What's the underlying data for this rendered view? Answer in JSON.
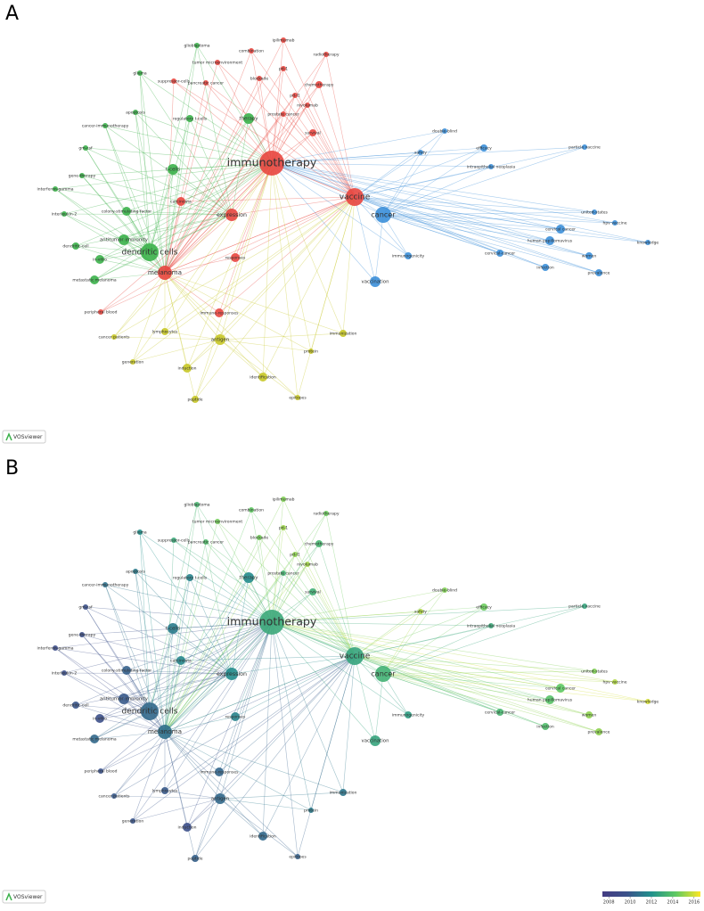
{
  "panel_a": {
    "label": "A"
  },
  "panel_b": {
    "label": "B"
  },
  "logo": "VOSviewer",
  "clusters": [
    "#e8463f",
    "#3bb14a",
    "#3b8fd9",
    "#c8c827"
  ],
  "legend": {
    "range": [
      2007.4,
      2016.6
    ],
    "ticks": [
      2008,
      2010,
      2012,
      2014,
      2016
    ]
  },
  "nodes": [
    {
      "label": "immunotherapy",
      "cluster": 0,
      "year": 2013.0
    },
    {
      "label": "vaccine",
      "cluster": 0,
      "year": 2012.8
    },
    {
      "label": "chemotherapy",
      "cluster": 0,
      "year": 2013.5
    },
    {
      "label": "combination",
      "cluster": 0,
      "year": 2014.3
    },
    {
      "label": "ipilimumab",
      "cluster": 0,
      "year": 2014.8
    },
    {
      "label": "radiotherapy",
      "cluster": 0,
      "year": 2014.5
    },
    {
      "label": "pd-1",
      "cluster": 0,
      "year": 2015.2
    },
    {
      "label": "blockade",
      "cluster": 0,
      "year": 2014.6
    },
    {
      "label": "pd-l1",
      "cluster": 0,
      "year": 2015.0
    },
    {
      "label": "nivolumab",
      "cluster": 0,
      "year": 2015.3
    },
    {
      "label": "tumor microenvironment",
      "cluster": 0,
      "year": 2014.6
    },
    {
      "label": "pancreatic cancer",
      "cluster": 0,
      "year": 2013.8
    },
    {
      "label": "survival",
      "cluster": 0,
      "year": 2013.2
    },
    {
      "label": "prostate cancer",
      "cluster": 0,
      "year": 2013.4
    },
    {
      "label": "melanoma",
      "cluster": 0,
      "year": 2010.8
    },
    {
      "label": "metastatic melanoma",
      "cluster": 1,
      "year": 2010.5
    },
    {
      "label": "carcinoma",
      "cluster": 0,
      "year": 2011.6
    },
    {
      "label": "expression",
      "cluster": 0,
      "year": 2011.8
    },
    {
      "label": "responses",
      "cluster": 0,
      "year": 2011.5
    },
    {
      "label": "immune-responses",
      "cluster": 0,
      "year": 2010.4
    },
    {
      "label": "cancer",
      "cluster": 2,
      "year": 2013.3
    },
    {
      "label": "vaccination",
      "cluster": 2,
      "year": 2012.8
    },
    {
      "label": "efficacy",
      "cluster": 2,
      "year": 2014.5
    },
    {
      "label": "cervical cancer",
      "cluster": 2,
      "year": 2014.3
    },
    {
      "label": "human papillomavirus",
      "cluster": 2,
      "year": 2014.0
    },
    {
      "label": "women",
      "cluster": 2,
      "year": 2015.0
    },
    {
      "label": "prevalence",
      "cluster": 2,
      "year": 2015.0
    },
    {
      "label": "infection",
      "cluster": 2,
      "year": 2013.8
    },
    {
      "label": "cervical-cancer",
      "cluster": 2,
      "year": 2013.5
    },
    {
      "label": "immunogenicity",
      "cluster": 2,
      "year": 2012.5
    },
    {
      "label": "hpv vaccine",
      "cluster": 2,
      "year": 2015.5
    },
    {
      "label": "knowledge",
      "cluster": 2,
      "year": 2016.0
    },
    {
      "label": "united-states",
      "cluster": 2,
      "year": 2014.8
    },
    {
      "label": "particle vaccine",
      "cluster": 2,
      "year": 2012.8
    },
    {
      "label": "intraepithelial neoplasia",
      "cluster": 2,
      "year": 2013.0
    },
    {
      "label": "double-blind",
      "cluster": 2,
      "year": 2014.8
    },
    {
      "label": "safety",
      "cluster": 2,
      "year": 2015.5
    },
    {
      "label": "dendritic cells",
      "cluster": 1,
      "year": 2010.5
    },
    {
      "label": "therapy",
      "cluster": 1,
      "year": 2011.8
    },
    {
      "label": "t-cells",
      "cluster": 1,
      "year": 2011.2
    },
    {
      "label": "colony-stimulating factor",
      "cluster": 1,
      "year": 2010.2
    },
    {
      "label": "antitumor immunity",
      "cluster": 1,
      "year": 2010.0
    },
    {
      "label": "in-vitro",
      "cluster": 1,
      "year": 2009.5
    },
    {
      "label": "dendritic-cell",
      "cluster": 1,
      "year": 2009.8
    },
    {
      "label": "interleukin-2",
      "cluster": 1,
      "year": 2009.5
    },
    {
      "label": "interferon-gamma",
      "cluster": 1,
      "year": 2009.3
    },
    {
      "label": "gene-therapy",
      "cluster": 1,
      "year": 2009.4
    },
    {
      "label": "gm-csf",
      "cluster": 1,
      "year": 2009.6
    },
    {
      "label": "regulatory t-cells",
      "cluster": 1,
      "year": 2011.5
    },
    {
      "label": "cancer-immunotherapy",
      "cluster": 1,
      "year": 2010.8
    },
    {
      "label": "apoptosis",
      "cluster": 1,
      "year": 2011.2
    },
    {
      "label": "antigen",
      "cluster": 3,
      "year": 2010.5
    },
    {
      "label": "induction",
      "cluster": 3,
      "year": 2009.5
    },
    {
      "label": "identification",
      "cluster": 3,
      "year": 2010.5
    },
    {
      "label": "peptide",
      "cluster": 3,
      "year": 2010.2
    },
    {
      "label": "immunization",
      "cluster": 3,
      "year": 2011.0
    },
    {
      "label": "protein",
      "cluster": 3,
      "year": 2011.2
    },
    {
      "label": "lymphocytes",
      "cluster": 3,
      "year": 2010.0
    },
    {
      "label": "generation",
      "cluster": 3,
      "year": 2009.8
    },
    {
      "label": "epitopes",
      "cluster": 3,
      "year": 2010.2
    },
    {
      "label": "peripheral blood",
      "cluster": 0,
      "year": 2009.7
    },
    {
      "label": "cancer patients",
      "cluster": 3,
      "year": 2010.0
    },
    {
      "label": "glioblastoma",
      "cluster": 1,
      "year": 2013.5
    },
    {
      "label": "suppressor-cells",
      "cluster": 0,
      "year": 2013.0
    },
    {
      "label": "glioma",
      "cluster": 1,
      "year": 2012.0
    }
  ]
}
